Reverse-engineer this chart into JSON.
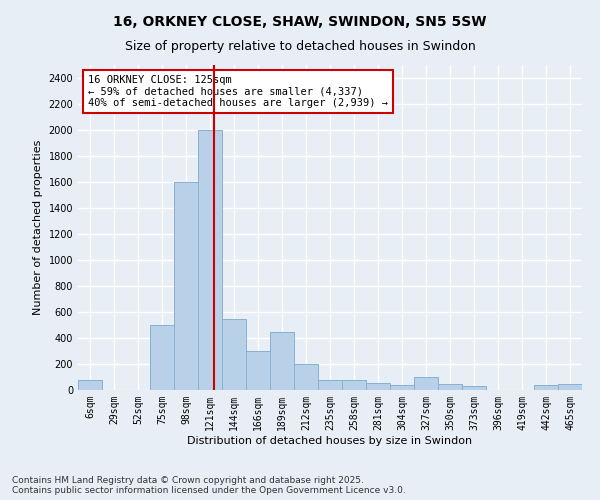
{
  "title": "16, ORKNEY CLOSE, SHAW, SWINDON, SN5 5SW",
  "subtitle": "Size of property relative to detached houses in Swindon",
  "xlabel": "Distribution of detached houses by size in Swindon",
  "ylabel": "Number of detached properties",
  "categories": [
    "6sqm",
    "29sqm",
    "52sqm",
    "75sqm",
    "98sqm",
    "121sqm",
    "144sqm",
    "166sqm",
    "189sqm",
    "212sqm",
    "235sqm",
    "258sqm",
    "281sqm",
    "304sqm",
    "327sqm",
    "350sqm",
    "373sqm",
    "396sqm",
    "419sqm",
    "442sqm",
    "465sqm"
  ],
  "values": [
    75,
    0,
    0,
    500,
    1600,
    2000,
    550,
    300,
    450,
    200,
    75,
    75,
    55,
    40,
    100,
    50,
    30,
    0,
    0,
    35,
    50
  ],
  "bar_color": "#b8d0e8",
  "bar_edge_color": "#8ab0d0",
  "bg_color": "#e8eef5",
  "grid_color": "#ffffff",
  "annotation_text": "16 ORKNEY CLOSE: 125sqm\n← 59% of detached houses are smaller (4,337)\n40% of semi-detached houses are larger (2,939) →",
  "annotation_box_color": "#ffffff",
  "annotation_box_edge": "#cc0000",
  "vline_color": "#cc0000",
  "ylim": [
    0,
    2500
  ],
  "yticks": [
    0,
    200,
    400,
    600,
    800,
    1000,
    1200,
    1400,
    1600,
    1800,
    2000,
    2200,
    2400
  ],
  "footer": "Contains HM Land Registry data © Crown copyright and database right 2025.\nContains public sector information licensed under the Open Government Licence v3.0.",
  "title_fontsize": 10,
  "subtitle_fontsize": 9,
  "axis_label_fontsize": 8,
  "tick_fontsize": 7,
  "annotation_fontsize": 7.5,
  "footer_fontsize": 6.5
}
